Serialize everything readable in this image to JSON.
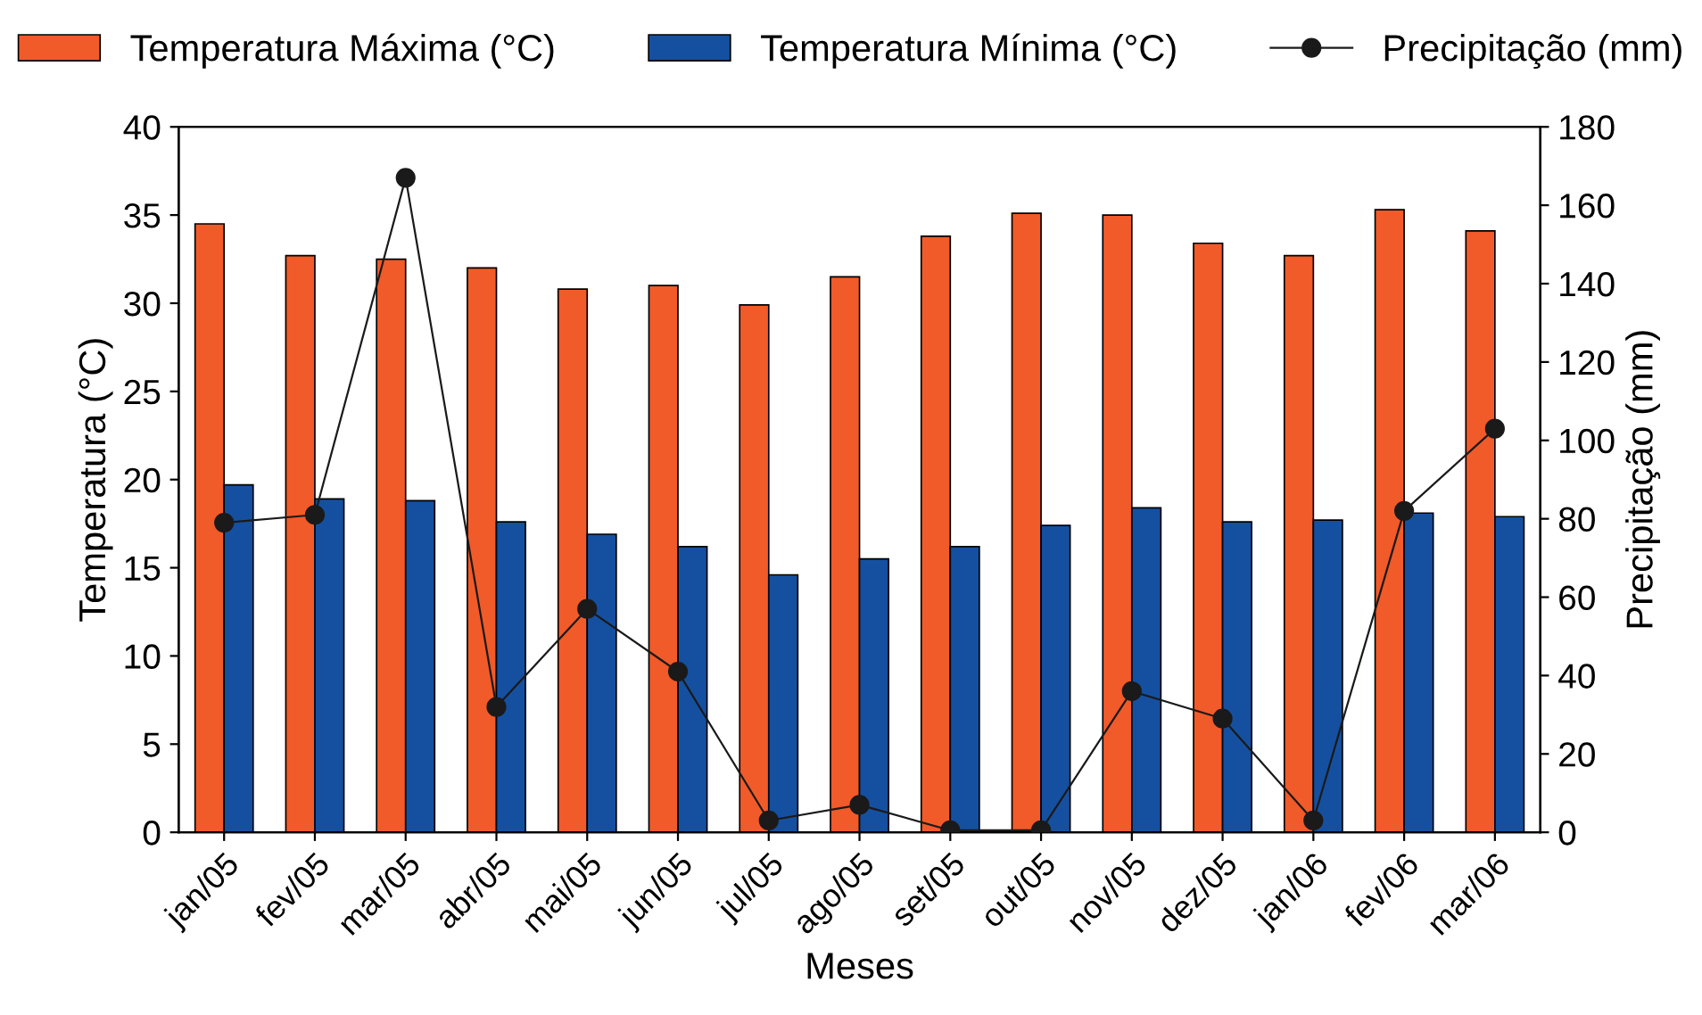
{
  "chart_data": {
    "type": "bar",
    "xlabel": "Meses",
    "ylabel": "Temperatura (°C)",
    "y2label": "Precipitação (mm)",
    "categories": [
      "jan/05",
      "fev/05",
      "mar/05",
      "abr/05",
      "mai/05",
      "jun/05",
      "jul/05",
      "ago/05",
      "set/05",
      "out/05",
      "nov/05",
      "dez/05",
      "jan/06",
      "fev/06",
      "mar/06"
    ],
    "series": [
      {
        "name": "Temperatura Máxima (°C)",
        "color": "#f15a29",
        "values": [
          34.5,
          32.7,
          32.5,
          32.0,
          30.8,
          31.0,
          29.9,
          31.5,
          33.8,
          35.1,
          35.0,
          33.4,
          32.7,
          35.3,
          34.1
        ]
      },
      {
        "name": "Temperatura Mínima (°C)",
        "color": "#1550a0",
        "values": [
          19.7,
          18.9,
          18.8,
          17.6,
          16.9,
          16.2,
          14.6,
          15.5,
          16.2,
          17.4,
          18.4,
          17.6,
          17.7,
          18.1,
          17.9
        ]
      },
      {
        "name": "Precipitação (mm)",
        "type": "line",
        "axis": "y2",
        "color": "#1a1a1a",
        "marker": "circle",
        "values": [
          79,
          81,
          167,
          32,
          57,
          41,
          3,
          7,
          0.5,
          0.5,
          36,
          29,
          3,
          82,
          103
        ]
      }
    ],
    "ylim": [
      0,
      40
    ],
    "yticks": [
      0,
      5,
      10,
      15,
      20,
      25,
      30,
      35,
      40
    ],
    "y2lim": [
      0,
      180
    ],
    "y2ticks": [
      0,
      20,
      40,
      60,
      80,
      100,
      120,
      140,
      160,
      180
    ],
    "grid": false,
    "legend": "top"
  }
}
